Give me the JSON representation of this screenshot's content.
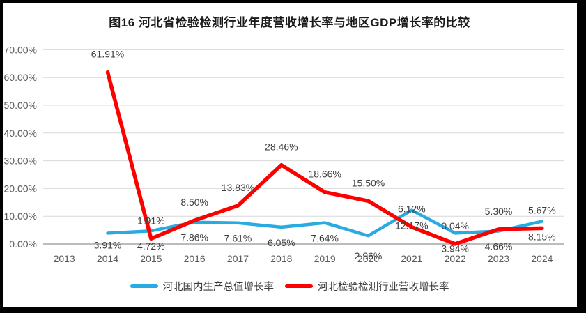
{
  "chart_data": {
    "type": "line",
    "title": "图16 河北省检验检测行业年度营收增长率与地区GDP增长率的比较",
    "xlabel": "",
    "ylabel": "",
    "categories": [
      "2013",
      "2014",
      "2015",
      "2016",
      "2017",
      "2018",
      "2019",
      "2020",
      "2021",
      "2022",
      "2023",
      "2024"
    ],
    "series": [
      {
        "name": "河北国内生产总值增长率",
        "color": "#29ABE2",
        "label_position": "below",
        "values": [
          null,
          3.91,
          4.72,
          7.86,
          7.61,
          6.05,
          7.64,
          2.96,
          12.17,
          3.94,
          4.66,
          8.15
        ]
      },
      {
        "name": "河北检验检测行业营收增长率",
        "color": "#FE0000",
        "label_position": "above",
        "values": [
          null,
          61.91,
          1.91,
          8.5,
          13.83,
          28.46,
          18.66,
          15.5,
          6.12,
          0.04,
          5.3,
          5.67
        ]
      }
    ],
    "ylim": [
      0,
      70
    ],
    "ytick_step": 10,
    "yticks": [
      "0.00%",
      "10.00%",
      "20.00%",
      "30.00%",
      "40.00%",
      "50.00%",
      "60.00%",
      "70.00%"
    ],
    "value_label_format": "0.00%",
    "grid": true,
    "legend_position": "bottom"
  },
  "colors": {
    "frame_border": "#000000",
    "gridline": "#D9D9D9",
    "axis_line": "#A6A6A6",
    "tick_label": "#595959",
    "data_label": "#3D3D3D",
    "title_text": "#1A1A1A"
  }
}
